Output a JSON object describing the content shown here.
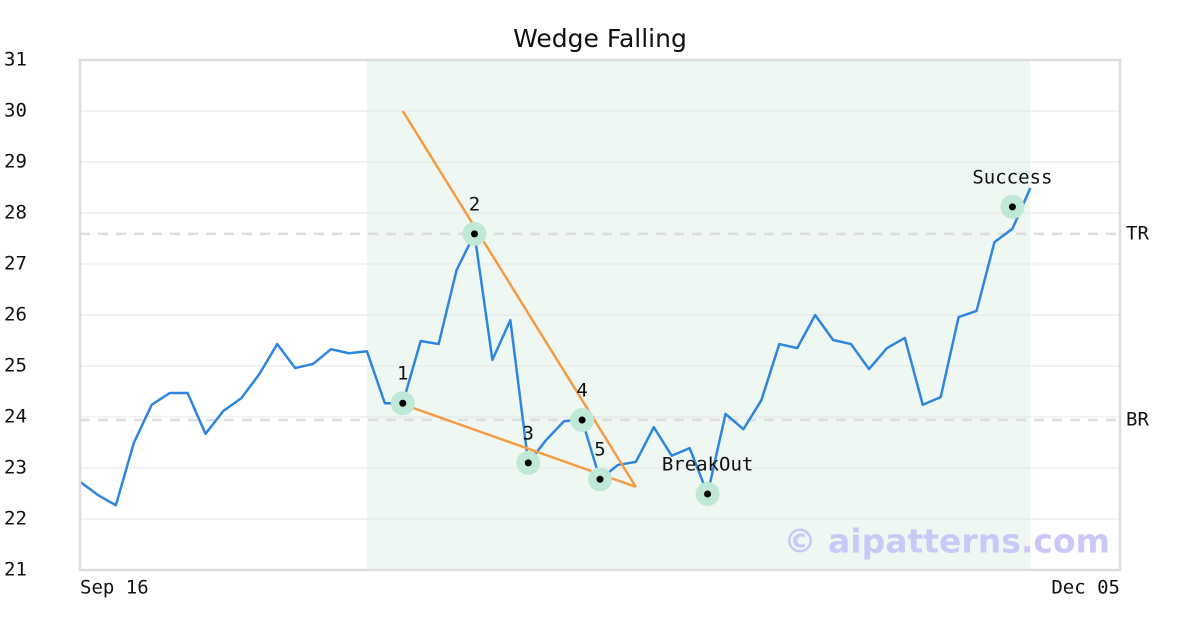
{
  "chart_data": {
    "type": "line",
    "title": "Wedge Falling",
    "x": [
      0,
      1,
      2,
      3,
      4,
      5,
      6,
      7,
      8,
      9,
      10,
      11,
      12,
      13,
      14,
      15,
      16,
      17,
      18,
      19,
      20,
      21,
      22,
      23,
      24,
      25,
      26,
      27,
      28,
      29,
      30,
      31,
      32,
      33,
      34,
      35,
      36,
      37,
      38,
      39,
      40,
      41,
      42,
      43,
      44,
      45,
      46,
      47,
      48,
      49,
      50,
      51,
      52,
      53
    ],
    "xlim": [
      0,
      58
    ],
    "xticks": [
      {
        "value": 0,
        "label": "Sep 16"
      },
      {
        "value": 58,
        "label": "Dec 05"
      }
    ],
    "ylim": [
      21,
      31
    ],
    "yticks": [
      21,
      22,
      23,
      24,
      25,
      26,
      27,
      28,
      29,
      30,
      31
    ],
    "grid": true,
    "series": [
      {
        "color": "#2e86de",
        "values": [
          22.73,
          22.47,
          22.27,
          23.49,
          24.24,
          24.47,
          24.47,
          23.67,
          24.12,
          24.37,
          24.84,
          25.43,
          24.96,
          25.04,
          25.33,
          25.25,
          25.29,
          24.27,
          24.27,
          25.49,
          25.43,
          26.88,
          27.59,
          25.12,
          25.9,
          23.1,
          23.55,
          23.92,
          23.94,
          22.78,
          23.06,
          23.12,
          23.8,
          23.24,
          23.39,
          22.49,
          24.06,
          23.76,
          24.33,
          25.43,
          25.35,
          26.0,
          25.51,
          25.43,
          24.94,
          25.35,
          25.55,
          24.24,
          24.39,
          25.96,
          26.08,
          27.43,
          27.69,
          28.49
        ]
      }
    ],
    "highlight": {
      "from": 16,
      "to": 53,
      "color": "#eff7f3"
    },
    "hlines": [
      {
        "label": "TR",
        "value": 27.59
      },
      {
        "label": "BR",
        "value": 23.94
      }
    ],
    "trendlines": [
      {
        "color": "#f59b42",
        "x": [
          18,
          31
        ],
        "values": [
          30.0,
          22.63
        ]
      },
      {
        "color": "#f59b42",
        "x": [
          18,
          31
        ],
        "values": [
          24.25,
          22.63
        ]
      }
    ],
    "points": [
      {
        "label": "1",
        "x": 18,
        "value": 24.27
      },
      {
        "label": "2",
        "x": 22,
        "value": 27.59
      },
      {
        "label": "3",
        "x": 25,
        "value": 23.1
      },
      {
        "label": "4",
        "x": 28,
        "value": 23.94
      },
      {
        "label": "5",
        "x": 29,
        "value": 22.78
      },
      {
        "label": "BreakOut",
        "x": 35,
        "value": 22.49
      },
      {
        "label": "Success",
        "x": 52,
        "value": 28.12
      }
    ],
    "watermark": "© aipatterns.com"
  }
}
